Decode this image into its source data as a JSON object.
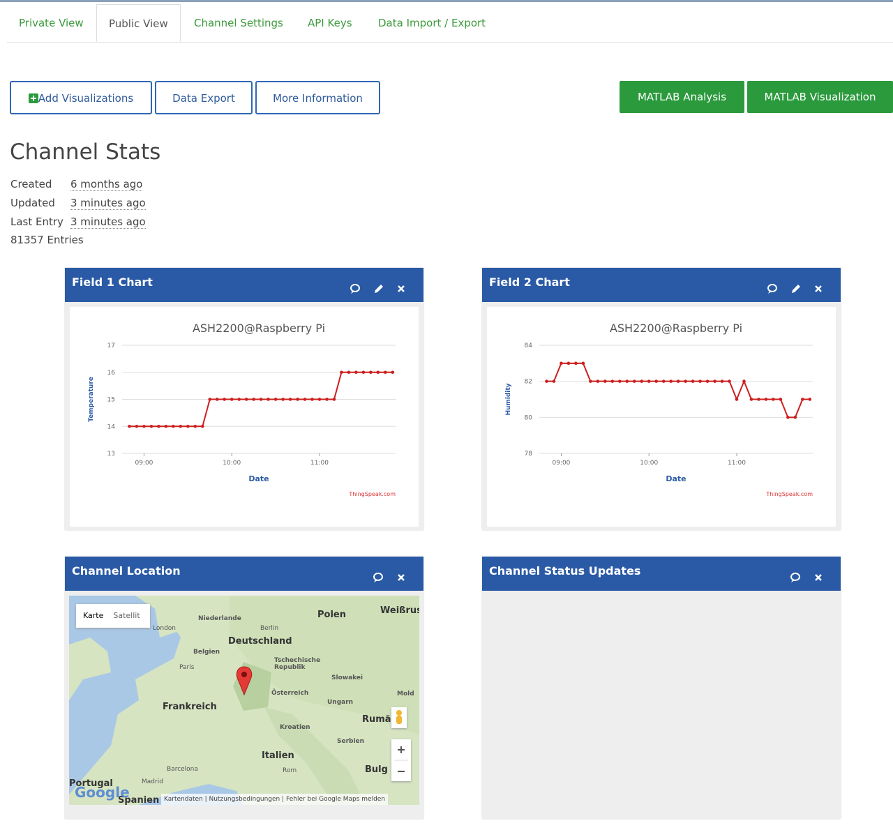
{
  "tabs": [
    "Private View",
    "Public View",
    "Channel Settings",
    "API Keys",
    "Data Import / Export"
  ],
  "active_tab": 1,
  "buttons": [
    "Add Visualizations",
    "Data Export",
    "More Information"
  ],
  "matlab_buttons": [
    "MATLAB Analysis",
    "MATLAB Visualization"
  ],
  "stats": {
    "title": "Channel Stats",
    "rows": [
      [
        "Created",
        "6 months ago"
      ],
      [
        "Updated",
        "3 minutes ago"
      ],
      [
        "Last Entry",
        "3 minutes ago"
      ]
    ],
    "entries": "81357 Entries"
  },
  "widgets": [
    {
      "header": "Field 1 Chart",
      "chart_data": {
        "type": "line",
        "title": "ASH2200@Raspberry Pi",
        "x_label": "Date",
        "y_label": "Temperature",
        "credit": "ThingSpeak.com",
        "x": [
          "08:50",
          "08:55",
          "09:00",
          "09:05",
          "09:10",
          "09:15",
          "09:20",
          "09:25",
          "09:30",
          "09:35",
          "09:40",
          "09:45",
          "09:50",
          "09:55",
          "10:00",
          "10:05",
          "10:10",
          "10:15",
          "10:20",
          "10:25",
          "10:30",
          "10:35",
          "10:40",
          "10:45",
          "10:50",
          "10:55",
          "11:00",
          "11:05",
          "11:10",
          "11:15",
          "11:20",
          "11:25",
          "11:30",
          "11:35",
          "11:40",
          "11:45",
          "11:50"
        ],
        "series": [
          {
            "name": "Field 1",
            "color": "#cc1f1f",
            "values": [
              14,
              14,
              14,
              14,
              14,
              14,
              14,
              14,
              14,
              14,
              14,
              15,
              15,
              15,
              15,
              15,
              15,
              15,
              15,
              15,
              15,
              15,
              15,
              15,
              15,
              15,
              15,
              15,
              15,
              16,
              16,
              16,
              16,
              16,
              16,
              16,
              16
            ]
          }
        ],
        "xlim": [
          "08:45",
          "11:52"
        ],
        "xticks": [
          "09:00",
          "10:00",
          "11:00"
        ],
        "ylim": [
          13,
          17
        ],
        "yticks": [
          13,
          14,
          15,
          16,
          17
        ],
        "grid": true
      }
    },
    {
      "header": "Field 2 Chart",
      "chart_data": {
        "type": "line",
        "title": "ASH2200@Raspberry Pi",
        "x_label": "Date",
        "y_label": "Humidity",
        "credit": "ThingSpeak.com",
        "x": [
          "08:50",
          "08:55",
          "09:00",
          "09:05",
          "09:10",
          "09:15",
          "09:20",
          "09:25",
          "09:30",
          "09:35",
          "09:40",
          "09:45",
          "09:50",
          "09:55",
          "10:00",
          "10:05",
          "10:10",
          "10:15",
          "10:20",
          "10:25",
          "10:30",
          "10:35",
          "10:40",
          "10:45",
          "10:50",
          "10:55",
          "11:00",
          "11:05",
          "11:10",
          "11:15",
          "11:20",
          "11:25",
          "11:30",
          "11:35",
          "11:40",
          "11:45",
          "11:50"
        ],
        "series": [
          {
            "name": "Field 2",
            "color": "#cc1f1f",
            "values": [
              82,
              82,
              83,
              83,
              83,
              83,
              82,
              82,
              82,
              82,
              82,
              82,
              82,
              82,
              82,
              82,
              82,
              82,
              82,
              82,
              82,
              82,
              82,
              82,
              82,
              82,
              81,
              82,
              81,
              81,
              81,
              81,
              81,
              80,
              80,
              81,
              81
            ]
          }
        ],
        "xlim": [
          "08:45",
          "11:52"
        ],
        "xticks": [
          "09:00",
          "10:00",
          "11:00"
        ],
        "ylim": [
          78,
          84
        ],
        "yticks": [
          78,
          80,
          82,
          84
        ],
        "grid": true
      }
    },
    {
      "header": "Channel Location"
    },
    {
      "header": "Channel Status Updates"
    }
  ],
  "map": {
    "modes": [
      "Karte",
      "Satellit"
    ],
    "labels": [
      "Polen",
      "Deutschland",
      "Frankreich",
      "Niederlande",
      "Belgien",
      "London",
      "Paris",
      "Berlin",
      "Tschechische Republik",
      "Slowakei",
      "Österreich",
      "Ungarn",
      "Kroatien",
      "Serbien",
      "Italien",
      "Rom",
      "Madrid",
      "Barcelona",
      "Portugal",
      "Spanien",
      "Weißrus",
      "Rumä",
      "Bulg",
      "Mold"
    ],
    "logo": "Google",
    "footer": [
      "Kartendaten",
      "Nutzungsbedingungen",
      "Fehler bei Google Maps melden"
    ]
  }
}
